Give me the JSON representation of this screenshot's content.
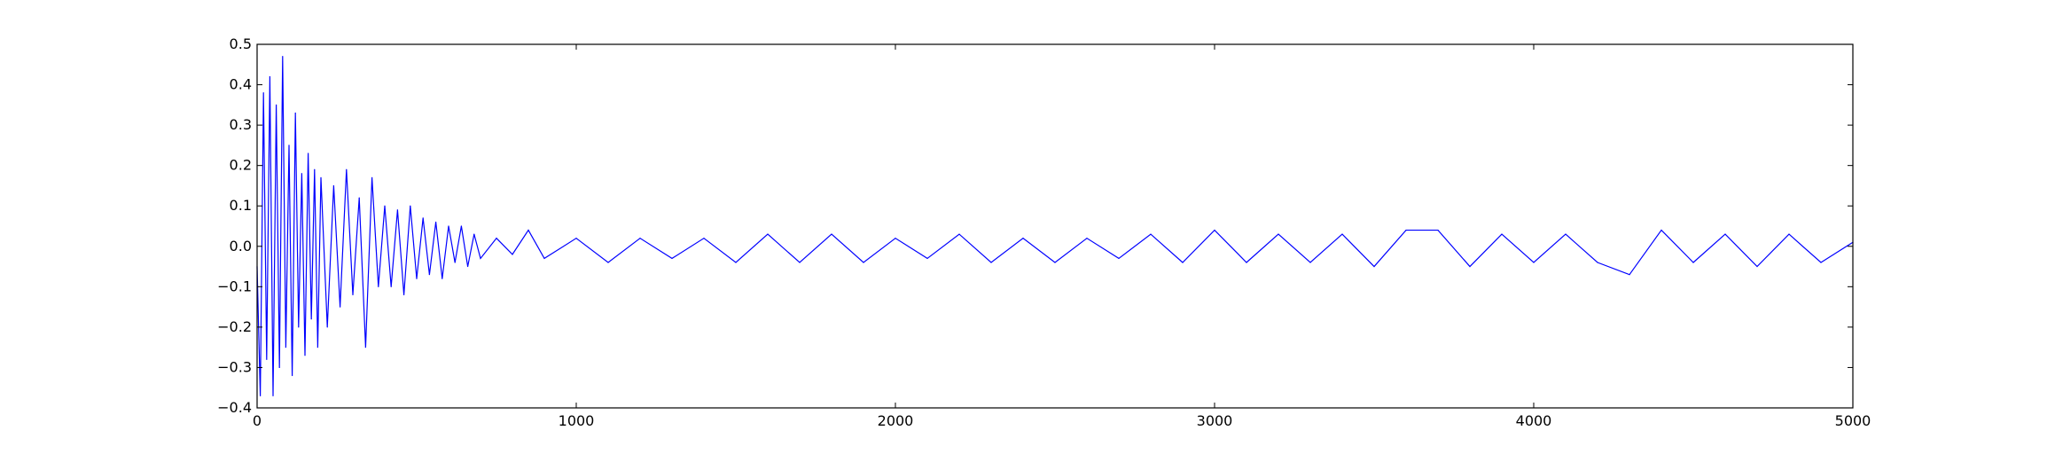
{
  "chart_data": {
    "type": "line",
    "title": "",
    "xlabel": "",
    "ylabel": "",
    "xlim": [
      0,
      5000
    ],
    "ylim": [
      -0.4,
      0.5
    ],
    "xticks": [
      0,
      1000,
      2000,
      3000,
      4000,
      5000
    ],
    "xtick_labels": [
      "0",
      "1000",
      "2000",
      "3000",
      "4000",
      "5000"
    ],
    "yticks": [
      -0.4,
      -0.3,
      -0.2,
      -0.1,
      0.0,
      0.1,
      0.2,
      0.3,
      0.4,
      0.5
    ],
    "ytick_labels": [
      "−0.4",
      "−0.3",
      "−0.2",
      "−0.1",
      "0.0",
      "0.1",
      "0.2",
      "0.3",
      "0.4",
      "0.5"
    ],
    "grid": false,
    "legend": "none",
    "series": [
      {
        "color": "#0000ff",
        "description_of_shape": "decaying oscillation noise",
        "x": [
          0,
          10,
          20,
          30,
          40,
          50,
          60,
          70,
          80,
          90,
          100,
          110,
          120,
          130,
          140,
          150,
          160,
          170,
          180,
          190,
          200,
          220,
          240,
          260,
          280,
          300,
          320,
          340,
          360,
          380,
          400,
          420,
          440,
          460,
          480,
          500,
          520,
          540,
          560,
          580,
          600,
          620,
          640,
          660,
          680,
          700,
          750,
          800,
          850,
          900,
          1000,
          1100,
          1200,
          1300,
          1400,
          1500,
          1600,
          1700,
          1800,
          1900,
          2000,
          2100,
          2200,
          2300,
          2400,
          2500,
          2600,
          2700,
          2800,
          2900,
          3000,
          3100,
          3200,
          3300,
          3400,
          3500,
          3600,
          3700,
          3800,
          3900,
          4000,
          4100,
          4200,
          4300,
          4400,
          4500,
          4600,
          4700,
          4800,
          4900,
          5000
        ],
        "y": [
          -0.05,
          -0.37,
          0.38,
          -0.28,
          0.42,
          -0.37,
          0.35,
          -0.3,
          0.47,
          -0.25,
          0.25,
          -0.32,
          0.33,
          -0.2,
          0.18,
          -0.27,
          0.23,
          -0.18,
          0.19,
          -0.25,
          0.17,
          -0.2,
          0.15,
          -0.15,
          0.19,
          -0.12,
          0.12,
          -0.25,
          0.17,
          -0.1,
          0.1,
          -0.1,
          0.09,
          -0.12,
          0.1,
          -0.08,
          0.07,
          -0.07,
          0.06,
          -0.08,
          0.05,
          -0.04,
          0.05,
          -0.05,
          0.03,
          -0.03,
          0.02,
          -0.02,
          0.04,
          -0.03,
          0.02,
          -0.04,
          0.02,
          -0.03,
          0.02,
          -0.04,
          0.03,
          -0.04,
          0.03,
          -0.04,
          0.02,
          -0.03,
          0.03,
          -0.04,
          0.02,
          -0.04,
          0.02,
          -0.03,
          0.03,
          -0.04,
          0.04,
          -0.04,
          0.03,
          -0.04,
          0.03,
          -0.05,
          0.04,
          0.04,
          -0.05,
          0.03,
          -0.04,
          0.03,
          -0.04,
          -0.07,
          0.04,
          -0.04,
          0.03,
          -0.05,
          0.03,
          -0.04,
          0.01
        ]
      }
    ]
  }
}
